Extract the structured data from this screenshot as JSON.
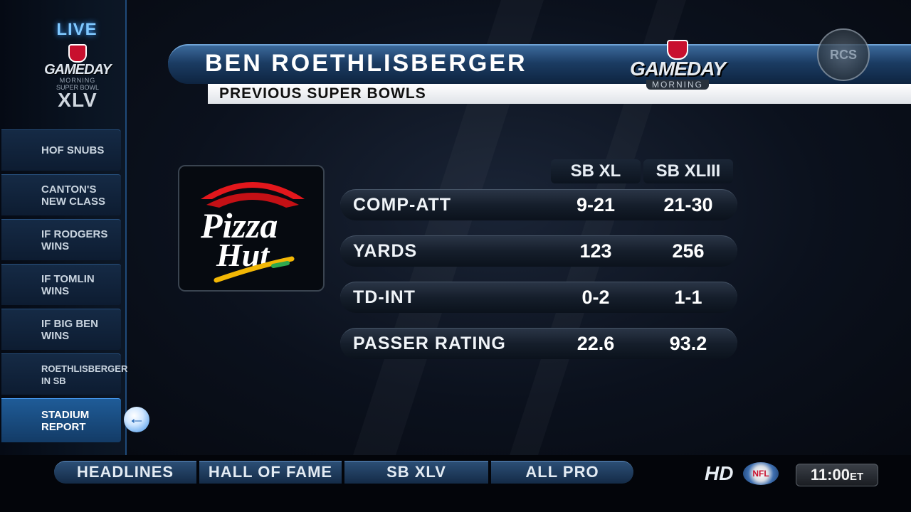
{
  "sidebar": {
    "live_label": "LIVE",
    "logo": {
      "line1": "GAMEDAY",
      "line2": "MORNING",
      "line3": "SUPER BOWL",
      "line4": "XLV"
    },
    "items": [
      {
        "label": "HOF SNUBS"
      },
      {
        "label": "CANTON'S NEW CLASS"
      },
      {
        "label": "IF RODGERS WINS"
      },
      {
        "label": "IF TOMLIN WINS"
      },
      {
        "label": "IF BIG BEN WINS"
      },
      {
        "label": "ROETHLISBERGER IN SB"
      },
      {
        "label": "STADIUM REPORT"
      }
    ],
    "back_arrow": "←"
  },
  "header": {
    "title": "BEN ROETHLISBERGER",
    "subtitle": "PREVIOUS SUPER BOWLS",
    "logo": {
      "badge": "NFL",
      "name": "GAMEDAY",
      "sub": "MORNING"
    },
    "watermark": "RCS"
  },
  "sponsor": {
    "line1": "Pizza",
    "line2": "Hut"
  },
  "stats": {
    "columns": [
      "SB XL",
      "SB XLIII"
    ],
    "rows": [
      {
        "label": "COMP-ATT",
        "values": [
          "9-21",
          "21-30"
        ]
      },
      {
        "label": "YARDS",
        "values": [
          "123",
          "256"
        ]
      },
      {
        "label": "TD-INT",
        "values": [
          "0-2",
          "1-1"
        ]
      },
      {
        "label": "PASSER RATING",
        "values": [
          "22.6",
          "93.2"
        ]
      }
    ]
  },
  "bottom_nav": {
    "tabs": [
      "HEADLINES",
      "HALL OF FAME",
      "SB XLV",
      "ALL PRO"
    ]
  },
  "status": {
    "hd_label": "HD",
    "network_badge": "NFL",
    "clock_time": "11:00",
    "clock_zone": "ET"
  },
  "colors": {
    "accent": "#3a9cff",
    "brand_red": "#c8102e"
  }
}
